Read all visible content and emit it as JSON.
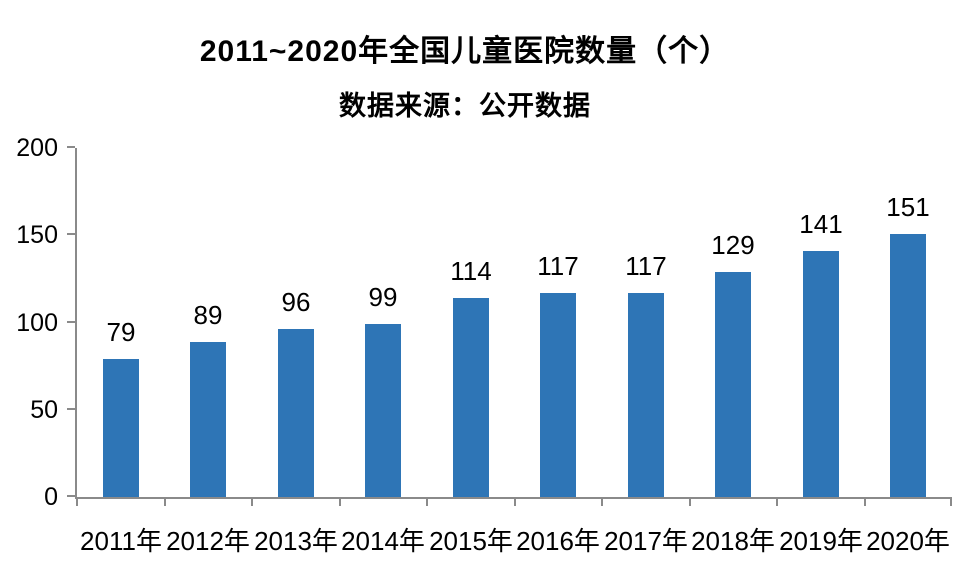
{
  "chart_data": {
    "type": "bar",
    "title": "2011~2020年全国儿童医院数量（个）",
    "subtitle": "数据来源：公开数据",
    "categories": [
      "2011年",
      "2012年",
      "2013年",
      "2014年",
      "2015年",
      "2016年",
      "2017年",
      "2018年",
      "2019年",
      "2020年"
    ],
    "values": [
      79,
      89,
      96,
      99,
      114,
      117,
      117,
      129,
      141,
      151
    ],
    "xlabel": "",
    "ylabel": "",
    "ylim": [
      0,
      200
    ],
    "yticks": [
      0,
      50,
      100,
      150,
      200
    ],
    "grid": false,
    "legend": false,
    "data_labels": true,
    "colors": {
      "bar": "#2E75B6",
      "axis": "#8A8A8A",
      "text": "#000000",
      "background": "#FFFFFF"
    }
  }
}
